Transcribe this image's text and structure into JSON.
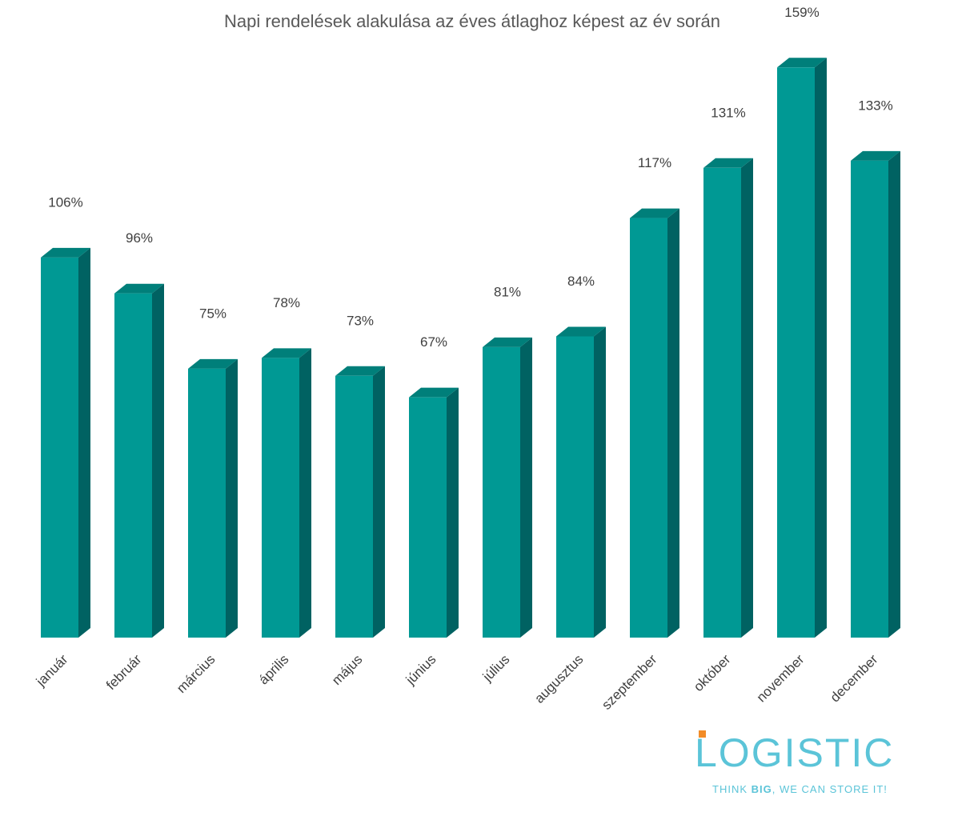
{
  "chart_data": {
    "type": "bar3d",
    "title": "Napi rendelések alakulása az éves átlaghoz képest az év során",
    "categories": [
      "január",
      "február",
      "március",
      "április",
      "május",
      "június",
      "július",
      "augusztus",
      "szeptember",
      "október",
      "november",
      "december"
    ],
    "values": [
      106,
      96,
      75,
      78,
      73,
      67,
      81,
      84,
      117,
      131,
      159,
      133
    ],
    "value_labels": [
      "106%",
      "96%",
      "75%",
      "78%",
      "73%",
      "67%",
      "81%",
      "84%",
      "117%",
      "131%",
      "159%",
      "133%"
    ],
    "color": "#009994",
    "side_color": "#006262",
    "top_color": "#007f7a",
    "ylim": [
      0,
      170
    ]
  },
  "logo": {
    "name": "LOGISTIC",
    "tagline": [
      "THINK ",
      "BIG",
      ", WE CAN STORE IT!"
    ]
  }
}
